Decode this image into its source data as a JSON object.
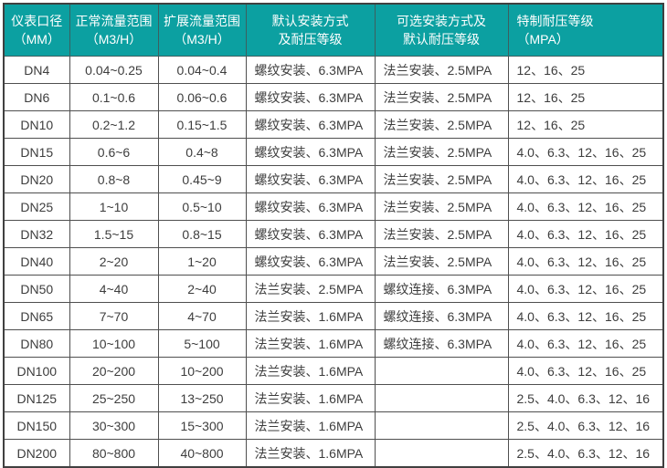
{
  "table": {
    "headers": [
      {
        "line1": "仪表口径",
        "line2": "（MM）"
      },
      {
        "line1": "正常流量范围",
        "line2": "（M3/H）"
      },
      {
        "line1": "扩展流量范围",
        "line2": "（M3/H）"
      },
      {
        "line1": "默认安装方式",
        "line2": "及耐压等级"
      },
      {
        "line1": "可选安装方式及",
        "line2": "默认耐压等级"
      },
      {
        "line1": "特制耐压等级",
        "line2": "（MPA）"
      }
    ],
    "rows": [
      [
        "DN4",
        "0.04~0.25",
        "0.04~0.4",
        "螺纹安装、6.3MPA",
        "法兰安装、2.5MPA",
        "12、16、25"
      ],
      [
        "DN6",
        "0.1~0.6",
        "0.06~0.6",
        "螺纹安装、6.3MPA",
        "法兰安装、2.5MPA",
        "12、16、25"
      ],
      [
        "DN10",
        "0.2~1.2",
        "0.15~1.5",
        "螺纹安装、6.3MPA",
        "法兰安装、2.5MPA",
        "12、16、25"
      ],
      [
        "DN15",
        "0.6~6",
        "0.4~8",
        "螺纹安装、6.3MPA",
        "法兰安装、2.5MPA",
        "4.0、6.3、12、16、25"
      ],
      [
        "DN20",
        "0.8~8",
        "0.45~9",
        "螺纹安装、6.3MPA",
        "法兰安装、2.5MPA",
        "4.0、6.3、12、16、25"
      ],
      [
        "DN25",
        "1~10",
        "0.5~10",
        "螺纹安装、6.3MPA",
        "法兰安装、2.5MPA",
        "4.0、6.3、12、16、25"
      ],
      [
        "DN32",
        "1.5~15",
        "0.8~15",
        "螺纹安装、6.3MPA",
        "法兰安装、2.5MPA",
        "4.0、6.3、12、16、25"
      ],
      [
        "DN40",
        "2~20",
        "1~20",
        "螺纹安装、6.3MPA",
        "法兰安装、2.5MPA",
        "4.0、6.3、12、16、25"
      ],
      [
        "DN50",
        "4~40",
        "2~40",
        "法兰安装、2.5MPA",
        "螺纹连接、6.3MPA",
        "4.0、6.3、12、16、25"
      ],
      [
        "DN65",
        "7~70",
        "4~70",
        "法兰安装、1.6MPA",
        "螺纹连接、6.3MPA",
        "4.0、6.3、12、16、25"
      ],
      [
        "DN80",
        "10~100",
        "5~100",
        "法兰安装、1.6MPA",
        "螺纹连接、6.3MPA",
        "4.0、6.3、12、16、25"
      ],
      [
        "DN100",
        "20~200",
        "10~200",
        "法兰安装、1.6MPA",
        "",
        "4.0、6.3、12、16、25"
      ],
      [
        "DN125",
        "25~250",
        "13~250",
        "法兰安装、1.6MPA",
        "",
        "2.5、4.0、6.3、12、16"
      ],
      [
        "DN150",
        "30~300",
        "15~300",
        "法兰安装、1.6MPA",
        "",
        "2.5、4.0、6.3、12、16"
      ],
      [
        "DN200",
        "80~800",
        "40~800",
        "法兰安装、1.6MPA",
        "",
        "2.5、4.0、6.3、12、16"
      ]
    ]
  },
  "colors": {
    "header_bg": "#0ca0a1",
    "header_text": "#ffffff",
    "grid_line": "#4f4f4f",
    "body_text": "#3d3d3d"
  }
}
